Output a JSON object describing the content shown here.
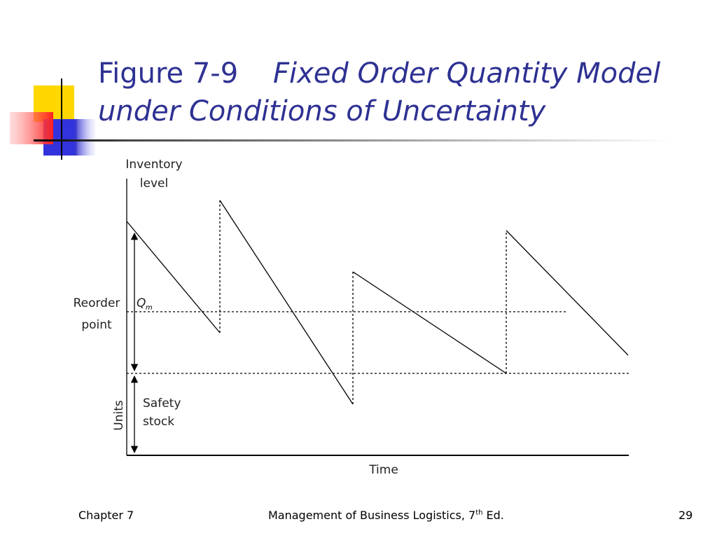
{
  "header": {
    "figure": "Figure 7-9",
    "title_lines": [
      "Fixed Order Quantity Model",
      "under Conditions of Uncertainty"
    ]
  },
  "diagram": {
    "y_label_lines": [
      "Inventory",
      "level"
    ],
    "reorder_lines": [
      "Reorder",
      "point"
    ],
    "q": "Q",
    "q_sub": "m",
    "safety_lines": [
      "Safety",
      "stock"
    ],
    "units": "Units",
    "x_label": "Time"
  },
  "footer": {
    "left": "Chapter 7",
    "center": "Management of Business Logistics, 7",
    "center_sup": "th",
    "center_end": "Ed.",
    "page": "29"
  }
}
